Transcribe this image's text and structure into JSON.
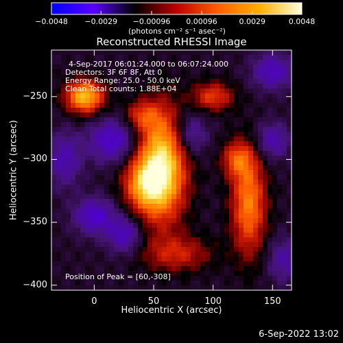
{
  "colorbar": {
    "tick_labels": [
      "-0.0048",
      "-0.0029",
      "-0.00096",
      "0.00096",
      "0.0029",
      "0.0048"
    ],
    "units": "(photons cm⁻² s⁻¹ asec⁻²)",
    "range": [
      -0.0048,
      0.0048
    ],
    "colors": [
      "#0000ff",
      "#5a00ff",
      "#000000",
      "#c00000",
      "#ff6000",
      "#ffb000",
      "#ffffe0"
    ]
  },
  "chart_data": {
    "type": "heatmap",
    "title": "Reconstructed RHESSI Image",
    "xlabel": "Heliocentric X (arcsec)",
    "ylabel": "Heliocentric Y (arcsec)",
    "xlim": [
      -36,
      166
    ],
    "ylim": [
      -404,
      -213
    ],
    "x_ticks": [
      0,
      50,
      100,
      150
    ],
    "y_ticks": [
      -250,
      -300,
      -350,
      -400
    ],
    "x_tick_labels": [
      "0",
      "50",
      "100",
      "150"
    ],
    "y_tick_labels": [
      "-250",
      "-300",
      "-350",
      "-400"
    ],
    "grid": false,
    "peak_position": [
      60,
      -308
    ],
    "annotations": [
      "4-Sep-2017 06:01:24.000 to 06:07:24.000",
      "Detectors: 3F 6F 8F, Att 0",
      "Energy Range: 25.0 - 50.0 keV",
      "Clean    Total counts: 1.88E+04",
      "Position of Peak = [60,-308]"
    ],
    "sources": [
      {
        "x": 57,
        "y": -305,
        "sx": 14,
        "sy": 30,
        "amp": 1.0
      },
      {
        "x": 42,
        "y": -320,
        "sx": 12,
        "sy": 14,
        "amp": 0.6
      },
      {
        "x": -8,
        "y": -250,
        "sx": 11,
        "sy": 9,
        "amp": 0.85
      },
      {
        "x": 130,
        "y": -335,
        "sx": 10,
        "sy": 28,
        "amp": 0.65
      },
      {
        "x": 120,
        "y": -300,
        "sx": 9,
        "sy": 10,
        "amp": 0.45
      },
      {
        "x": 100,
        "y": -250,
        "sx": 12,
        "sy": 8,
        "amp": 0.45
      },
      {
        "x": 40,
        "y": -265,
        "sx": 10,
        "sy": 8,
        "amp": 0.35
      },
      {
        "x": 70,
        "y": -375,
        "sx": 20,
        "sy": 10,
        "amp": 0.35
      },
      {
        "x": 25,
        "y": -360,
        "sx": 10,
        "sy": 10,
        "amp": -0.4
      },
      {
        "x": 0,
        "y": -345,
        "sx": 12,
        "sy": 10,
        "amp": -0.45
      },
      {
        "x": 15,
        "y": -285,
        "sx": 14,
        "sy": 12,
        "amp": -0.45
      },
      {
        "x": 80,
        "y": -280,
        "sx": 10,
        "sy": 12,
        "amp": -0.35
      },
      {
        "x": 150,
        "y": -230,
        "sx": 12,
        "sy": 10,
        "amp": -0.4
      },
      {
        "x": 150,
        "y": -285,
        "sx": 10,
        "sy": 10,
        "amp": -0.35
      },
      {
        "x": 160,
        "y": -380,
        "sx": 10,
        "sy": 12,
        "amp": -0.3
      },
      {
        "x": -25,
        "y": -300,
        "sx": 10,
        "sy": 15,
        "amp": -0.35
      }
    ]
  },
  "footer": {
    "timestamp": "6-Sep-2022 13:02"
  }
}
